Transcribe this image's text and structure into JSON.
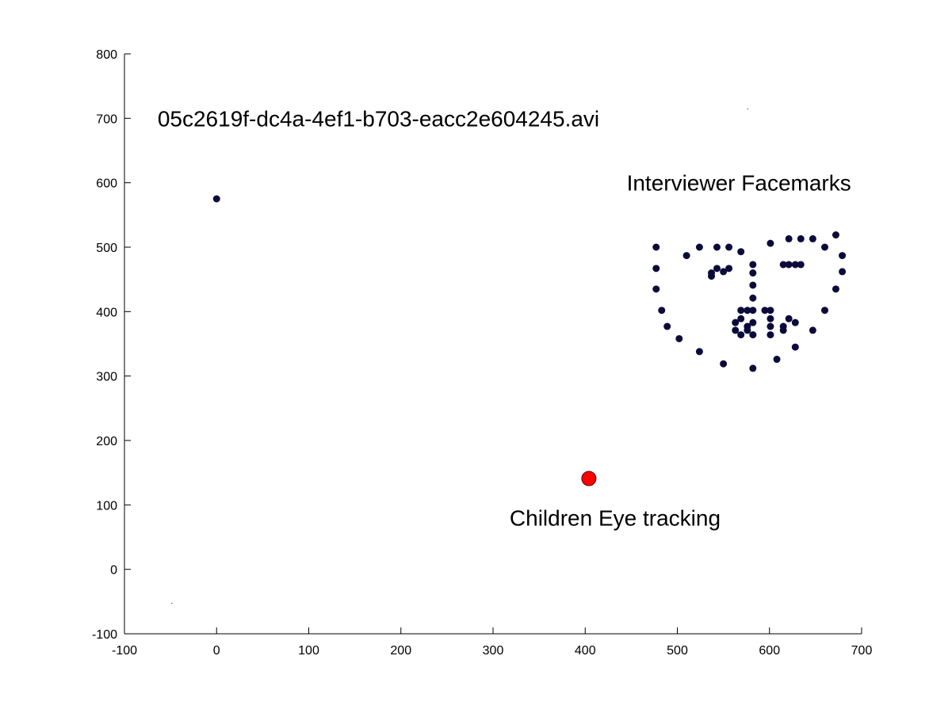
{
  "chart_data": {
    "type": "scatter",
    "xlim": [
      -100,
      700
    ],
    "ylim": [
      -100,
      800
    ],
    "x_ticks": [
      -100,
      0,
      100,
      200,
      300,
      400,
      500,
      600,
      700
    ],
    "y_ticks": [
      -100,
      0,
      100,
      200,
      300,
      400,
      500,
      600,
      700,
      800
    ],
    "grid": false,
    "annotations": [
      {
        "text": "05c2619f-dc4a-4ef1-b703-eacc2e604245.avi",
        "x": -64,
        "y": 700
      },
      {
        "text": "Interviewer Facemarks",
        "x": 445,
        "y": 600
      },
      {
        "text": "Children Eye tracking",
        "x": 318,
        "y": 80
      }
    ],
    "series": [
      {
        "color": "#0b0b3b",
        "marker": "small-dot",
        "points": [
          [
            0,
            575
          ],
          [
            477,
            500
          ],
          [
            477,
            467
          ],
          [
            477,
            435
          ],
          [
            483,
            402
          ],
          [
            489,
            377
          ],
          [
            502,
            358
          ],
          [
            524,
            338
          ],
          [
            550,
            319
          ],
          [
            582,
            312
          ],
          [
            608,
            326
          ],
          [
            628,
            345
          ],
          [
            647,
            371
          ],
          [
            660,
            402
          ],
          [
            672,
            435
          ],
          [
            679,
            462
          ],
          [
            679,
            487
          ],
          [
            672,
            519
          ],
          [
            510,
            487
          ],
          [
            524,
            500
          ],
          [
            543,
            500
          ],
          [
            556,
            500
          ],
          [
            569,
            493
          ],
          [
            601,
            506
          ],
          [
            621,
            513
          ],
          [
            634,
            513
          ],
          [
            647,
            513
          ],
          [
            660,
            500
          ],
          [
            582,
            473
          ],
          [
            582,
            460
          ],
          [
            582,
            441
          ],
          [
            582,
            421
          ],
          [
            537,
            460
          ],
          [
            537,
            455
          ],
          [
            543,
            467
          ],
          [
            550,
            462
          ],
          [
            556,
            467
          ],
          [
            615,
            473
          ],
          [
            621,
            473
          ],
          [
            628,
            473
          ],
          [
            634,
            473
          ],
          [
            569,
            402
          ],
          [
            576,
            402
          ],
          [
            582,
            402
          ],
          [
            595,
            402
          ],
          [
            601,
            402
          ],
          [
            563,
            383
          ],
          [
            569,
            389
          ],
          [
            576,
            377
          ],
          [
            582,
            383
          ],
          [
            601,
            389
          ],
          [
            563,
            371
          ],
          [
            569,
            364
          ],
          [
            576,
            371
          ],
          [
            582,
            364
          ],
          [
            601,
            377
          ],
          [
            615,
            377
          ],
          [
            615,
            371
          ],
          [
            621,
            389
          ],
          [
            628,
            383
          ],
          [
            601,
            364
          ]
        ]
      },
      {
        "color": "#ff0000",
        "marker": "large-dot",
        "points": [
          [
            404,
            141
          ]
        ]
      },
      {
        "color": "#000000",
        "marker": "pixel",
        "points": [
          [
            -49,
            -52
          ],
          [
            576,
            715
          ]
        ]
      }
    ]
  }
}
